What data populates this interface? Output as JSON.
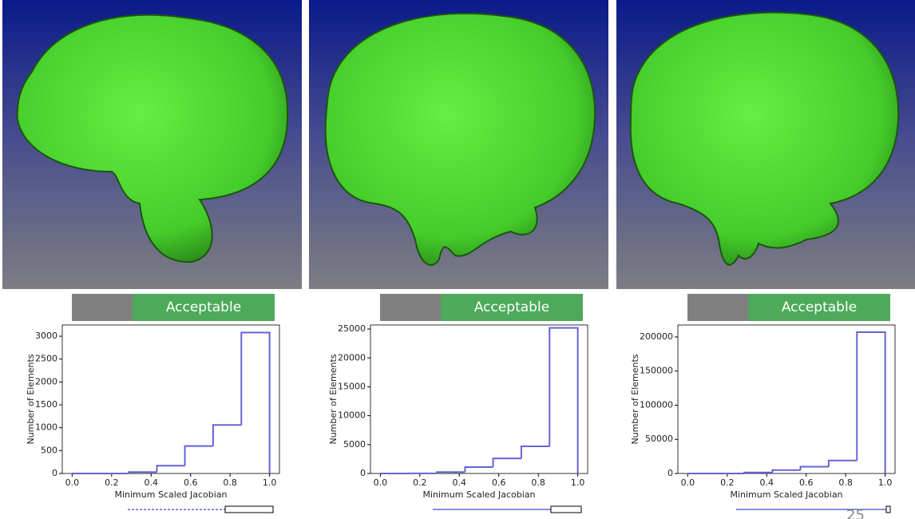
{
  "chart_data": [
    {
      "type": "histogram",
      "band_label": "Acceptable",
      "xlabel": "Minimum Scaled Jacobian",
      "ylabel": "Number of Elements",
      "bins": [
        0,
        0.143,
        0.286,
        0.429,
        0.571,
        0.714,
        0.857,
        1
      ],
      "values": [
        0,
        0,
        30,
        170,
        600,
        1060,
        3080
      ],
      "color": "#6464d6",
      "xlim": [
        -0.05,
        1.05
      ],
      "ylim": [
        0,
        3245
      ],
      "xticks": [
        {
          "value": 0,
          "label": "0.0"
        },
        0.2,
        0.4,
        0.6,
        0.8,
        {
          "value": 1,
          "label": "1.0"
        }
      ],
      "yticks": [
        0,
        500,
        1000,
        1500,
        2000,
        2500,
        3000
      ]
    },
    {
      "type": "histogram",
      "band_label": "Acceptable",
      "xlabel": "Minimum Scaled Jacobian",
      "ylabel": "Number of Elements",
      "bins": [
        0,
        0.143,
        0.286,
        0.429,
        0.571,
        0.714,
        0.857,
        1
      ],
      "values": [
        0,
        20,
        250,
        1100,
        2600,
        4700,
        25200
      ],
      "color": "#6464d6",
      "xlim": [
        -0.05,
        1.05
      ],
      "ylim": [
        0,
        25700
      ],
      "xticks": [
        {
          "value": 0,
          "label": "0.0"
        },
        0.2,
        0.4,
        0.6,
        0.8,
        {
          "value": 1,
          "label": "1.0"
        }
      ],
      "yticks": [
        0,
        5000,
        10000,
        15000,
        20000,
        25000
      ]
    },
    {
      "type": "histogram",
      "band_label": "Acceptable",
      "xlabel": "Minimum Scaled Jacobian",
      "ylabel": "Number of Elements",
      "bins": [
        0,
        0.143,
        0.286,
        0.429,
        0.571,
        0.714,
        0.857,
        1
      ],
      "values": [
        0,
        0,
        1500,
        5000,
        10000,
        19000,
        207000
      ],
      "color": "#6464d6",
      "xlim": [
        -0.05,
        1.05
      ],
      "ylim": [
        0,
        217500
      ],
      "xticks": [
        {
          "value": 0,
          "label": "0.0"
        },
        0.2,
        0.4,
        0.6,
        0.8,
        {
          "value": 1,
          "label": "1.0"
        }
      ],
      "yticks": [
        0,
        50000,
        100000,
        150000,
        200000
      ]
    }
  ],
  "page_number": "25"
}
